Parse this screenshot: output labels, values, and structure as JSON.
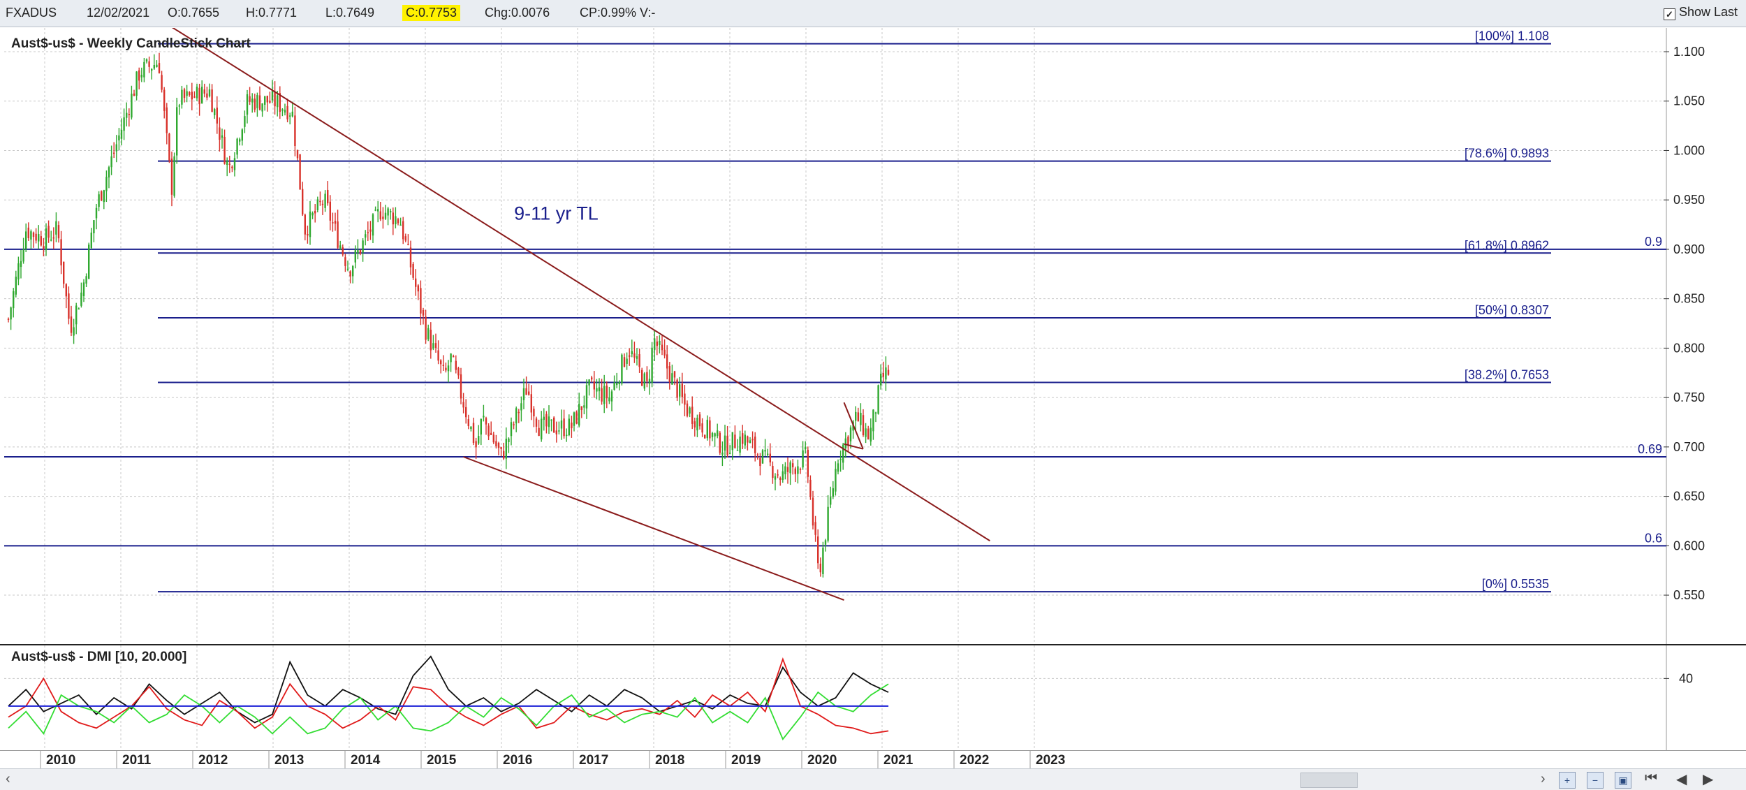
{
  "toolbar": {
    "symbol": "FXADUS",
    "date": "12/02/2021",
    "open": "O:0.7655",
    "high": "H:0.7771",
    "low": "L:0.7649",
    "close": "C:0.7753",
    "change": "Chg:0.0076",
    "change_pct": "CP:0.99%",
    "volume": "V:-",
    "show_last_label": "Show Last",
    "show_last_checked": true
  },
  "main_chart": {
    "title": "Aust$-us$ - Weekly CandleStick Chart",
    "annotation": "9-11 yr TL",
    "colors": {
      "up": "#2fa82f",
      "down": "#d8312a",
      "fib": "#1a1f8c",
      "trend": "#8b1c1c",
      "grid": "#c8c8c8"
    }
  },
  "dmi": {
    "title": "Aust$-us$ - DMI [10, 20.000]",
    "tick_label": "40"
  },
  "scrollbar": {
    "left_arrow": "‹",
    "right_arrow": "›",
    "nav_first": "⏮",
    "nav_prev": "◀",
    "nav_next": "▶"
  },
  "chart_data": [
    {
      "type": "candlestick",
      "title": "Aust$-us$ - Weekly CandleStick Chart",
      "x_ticks": [
        "2010",
        "2011",
        "2012",
        "2013",
        "2014",
        "2015",
        "2016",
        "2017",
        "2018",
        "2019",
        "2020",
        "2021",
        "2022",
        "2023"
      ],
      "y_ticks": [
        0.55,
        0.6,
        0.65,
        0.7,
        0.75,
        0.8,
        0.85,
        0.9,
        0.95,
        1.0,
        1.05,
        1.1
      ],
      "ylim": [
        0.54,
        1.12
      ],
      "price_path": [
        [
          "2009-07",
          0.82
        ],
        [
          "2009-10",
          0.92
        ],
        [
          "2010-01",
          0.91
        ],
        [
          "2010-03",
          0.92
        ],
        [
          "2010-05",
          0.82
        ],
        [
          "2010-07",
          0.86
        ],
        [
          "2010-09",
          0.94
        ],
        [
          "2010-12",
          1.0
        ],
        [
          "2011-04",
          1.08
        ],
        [
          "2011-07",
          1.09
        ],
        [
          "2011-09",
          0.96
        ],
        [
          "2011-10",
          1.05
        ],
        [
          "2012-03",
          1.06
        ],
        [
          "2012-06",
          0.98
        ],
        [
          "2012-09",
          1.05
        ],
        [
          "2013-01",
          1.05
        ],
        [
          "2013-04",
          1.04
        ],
        [
          "2013-06",
          0.92
        ],
        [
          "2013-09",
          0.95
        ],
        [
          "2014-01",
          0.88
        ],
        [
          "2014-06",
          0.94
        ],
        [
          "2014-09",
          0.93
        ],
        [
          "2015-01",
          0.82
        ],
        [
          "2015-04",
          0.77
        ],
        [
          "2015-05",
          0.79
        ],
        [
          "2015-09",
          0.7
        ],
        [
          "2015-10",
          0.73
        ],
        [
          "2016-01",
          0.69
        ],
        [
          "2016-05",
          0.76
        ],
        [
          "2016-07",
          0.72
        ],
        [
          "2016-12",
          0.72
        ],
        [
          "2017-03",
          0.76
        ],
        [
          "2017-06",
          0.75
        ],
        [
          "2017-09",
          0.8
        ],
        [
          "2017-12",
          0.76
        ],
        [
          "2018-01",
          0.81
        ],
        [
          "2018-06",
          0.74
        ],
        [
          "2018-09",
          0.72
        ],
        [
          "2018-12",
          0.7
        ],
        [
          "2019-03",
          0.71
        ],
        [
          "2019-06",
          0.69
        ],
        [
          "2019-09",
          0.67
        ],
        [
          "2020-01",
          0.69
        ],
        [
          "2020-03",
          0.57
        ],
        [
          "2020-06",
          0.69
        ],
        [
          "2020-09",
          0.73
        ],
        [
          "2020-11",
          0.71
        ],
        [
          "2021-01",
          0.77
        ],
        [
          "2021-02",
          0.7753
        ]
      ],
      "horizontal_lines": [
        {
          "label": "[100%] 1.108",
          "value": 1.108
        },
        {
          "label": "[78.6%] 0.9893",
          "value": 0.9893
        },
        {
          "label": "[61.8%] 0.8962",
          "value": 0.8962
        },
        {
          "label": "[50%] 0.8307",
          "value": 0.8307
        },
        {
          "label": "[38.2%] 0.7653",
          "value": 0.7653
        },
        {
          "label": "[0%] 0.5535",
          "value": 0.5535
        },
        {
          "label": "0.9",
          "value": 0.9
        },
        {
          "label": "0.69",
          "value": 0.69
        },
        {
          "label": "0.6",
          "value": 0.6
        }
      ],
      "trend_lines": [
        {
          "from": [
            "2011-09",
            1.125
          ],
          "to": [
            "2022-06",
            0.605
          ]
        },
        {
          "from": [
            "2015-07",
            0.69
          ],
          "to": [
            "2020-07",
            0.545
          ]
        },
        {
          "from": [
            "2020-07",
            0.745
          ],
          "to": [
            "2020-10",
            0.698
          ]
        },
        {
          "from": [
            "2020-07",
            0.703
          ],
          "to": [
            "2020-10",
            0.698
          ]
        }
      ],
      "annotation": {
        "text": "9-11 yr TL",
        "at": [
          "2016-03",
          0.93
        ]
      }
    },
    {
      "type": "line",
      "title": "Aust$-us$ - DMI [10, 20.000]",
      "series": [
        {
          "color": "#111111",
          "values": [
            30,
            36,
            28,
            31,
            34,
            27,
            33,
            29,
            38,
            32,
            27,
            31,
            35,
            28,
            24,
            27,
            46,
            34,
            30,
            36,
            33,
            29,
            27,
            41,
            48,
            36,
            30,
            33,
            28,
            31,
            36,
            32,
            28,
            34,
            30,
            36,
            33,
            28,
            30,
            32,
            29,
            34,
            31,
            30,
            44,
            35,
            30,
            33,
            42,
            38,
            35
          ]
        },
        {
          "color": "#e01a1a",
          "values": [
            26,
            30,
            40,
            28,
            24,
            22,
            26,
            30,
            37,
            29,
            25,
            23,
            32,
            28,
            22,
            26,
            38,
            30,
            27,
            22,
            25,
            30,
            25,
            37,
            36,
            30,
            26,
            23,
            27,
            30,
            22,
            24,
            30,
            27,
            25,
            28,
            29,
            27,
            32,
            26,
            34,
            30,
            35,
            28,
            47,
            30,
            27,
            23,
            22,
            20,
            21
          ]
        },
        {
          "color": "#33dd33",
          "values": [
            22,
            28,
            20,
            34,
            30,
            28,
            24,
            30,
            24,
            27,
            34,
            30,
            24,
            30,
            26,
            20,
            26,
            20,
            22,
            29,
            33,
            25,
            30,
            22,
            21,
            24,
            30,
            26,
            33,
            29,
            23,
            30,
            34,
            26,
            29,
            24,
            27,
            28,
            26,
            33,
            24,
            28,
            24,
            33,
            18,
            26,
            35,
            30,
            28,
            34,
            38
          ]
        },
        {
          "color": "#1a1fd6",
          "values": [
            30,
            30
          ]
        }
      ]
    }
  ]
}
